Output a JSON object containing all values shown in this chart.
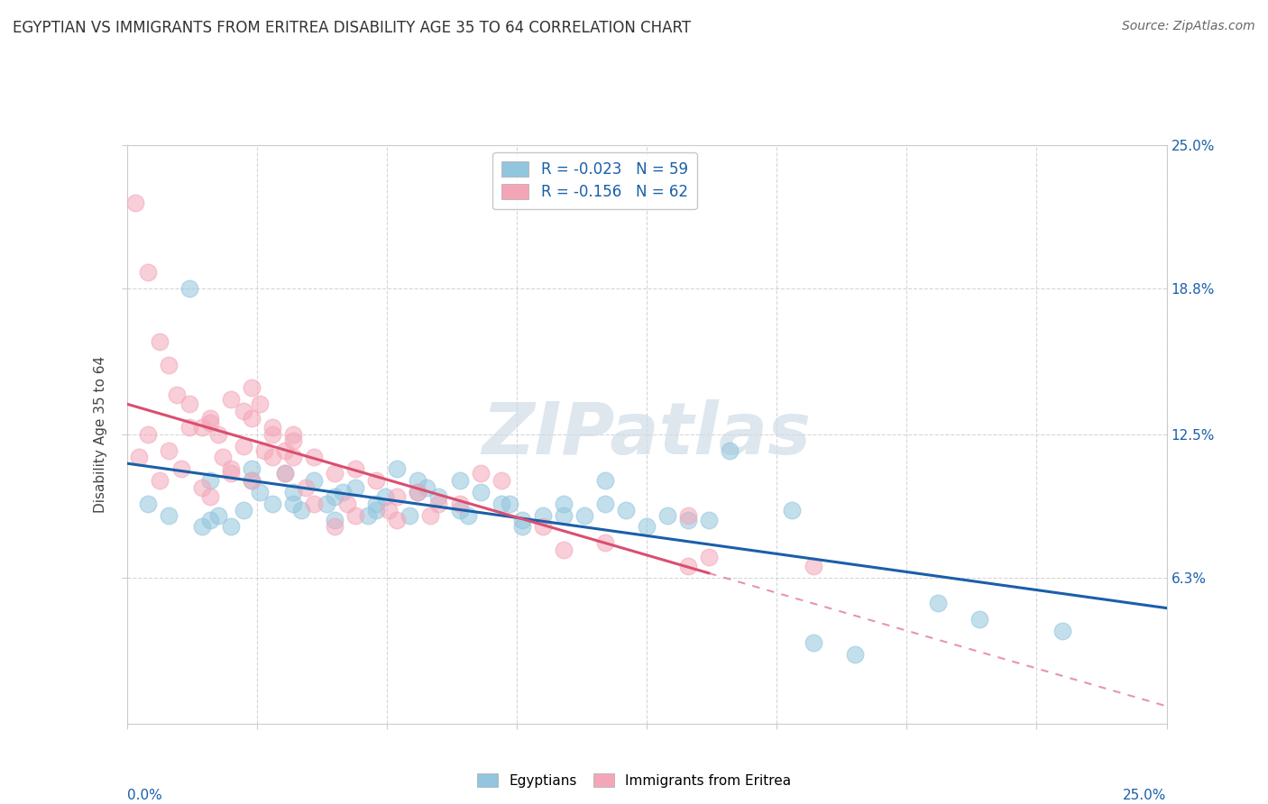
{
  "title": "EGYPTIAN VS IMMIGRANTS FROM ERITREA DISABILITY AGE 35 TO 64 CORRELATION CHART",
  "source": "Source: ZipAtlas.com",
  "ylabel": "Disability Age 35 to 64",
  "xlim": [
    0.0,
    25.0
  ],
  "ylim": [
    0.0,
    25.0
  ],
  "ytick_values": [
    6.3,
    12.5,
    18.8,
    25.0
  ],
  "watermark_text": "ZIPatlas",
  "legend_r1": "R = -0.023",
  "legend_n1": "N = 59",
  "legend_r2": "R = -0.156",
  "legend_n2": "N = 62",
  "color_blue": "#92c5de",
  "color_pink": "#f4a6b8",
  "line_blue": "#1a5fa8",
  "line_pink": "#d94f70",
  "egyptians_x": [
    0.5,
    1.5,
    2.0,
    2.2,
    2.5,
    3.0,
    3.2,
    3.5,
    4.0,
    4.2,
    4.5,
    5.0,
    5.5,
    5.8,
    6.0,
    6.5,
    6.8,
    7.0,
    7.5,
    8.0,
    8.5,
    9.0,
    9.5,
    10.0,
    10.5,
    11.0,
    11.5,
    12.0,
    12.5,
    13.0,
    13.5,
    14.5,
    16.5,
    17.5,
    20.5,
    22.5,
    1.8,
    2.8,
    3.8,
    4.8,
    5.2,
    6.2,
    7.2,
    8.2,
    9.2,
    1.0,
    2.0,
    3.0,
    4.0,
    5.0,
    6.0,
    7.0,
    8.0,
    9.5,
    10.5,
    11.5,
    14.0,
    16.0,
    19.5
  ],
  "egyptians_y": [
    9.5,
    18.8,
    10.5,
    9.0,
    8.5,
    11.0,
    10.0,
    9.5,
    10.0,
    9.2,
    10.5,
    9.8,
    10.2,
    9.0,
    9.5,
    11.0,
    9.0,
    10.5,
    9.8,
    9.2,
    10.0,
    9.5,
    8.8,
    9.0,
    9.5,
    9.0,
    10.5,
    9.2,
    8.5,
    9.0,
    8.8,
    11.8,
    3.5,
    3.0,
    4.5,
    4.0,
    8.5,
    9.2,
    10.8,
    9.5,
    10.0,
    9.8,
    10.2,
    9.0,
    9.5,
    9.0,
    8.8,
    10.5,
    9.5,
    8.8,
    9.2,
    10.0,
    10.5,
    8.5,
    9.0,
    9.5,
    8.8,
    9.2,
    5.2
  ],
  "eritrea_x": [
    0.2,
    0.5,
    0.8,
    1.0,
    1.2,
    1.5,
    1.8,
    2.0,
    2.2,
    2.5,
    2.8,
    3.0,
    3.2,
    3.5,
    3.8,
    4.0,
    4.5,
    5.0,
    5.5,
    6.0,
    6.5,
    7.0,
    8.0,
    9.0,
    10.5,
    13.5,
    0.3,
    0.8,
    1.3,
    1.8,
    2.3,
    2.8,
    3.3,
    3.8,
    4.3,
    5.3,
    6.3,
    7.3,
    8.5,
    10.0,
    11.5,
    14.0,
    16.5,
    0.5,
    1.0,
    1.5,
    2.0,
    2.5,
    3.0,
    3.5,
    4.0,
    4.5,
    5.5,
    6.5,
    2.0,
    2.5,
    3.0,
    3.5,
    4.0,
    5.0,
    7.5,
    13.5
  ],
  "eritrea_y": [
    22.5,
    19.5,
    16.5,
    15.5,
    14.2,
    13.8,
    12.8,
    13.2,
    12.5,
    14.0,
    13.5,
    14.5,
    13.8,
    12.5,
    11.8,
    12.5,
    11.5,
    10.8,
    11.0,
    10.5,
    9.8,
    10.0,
    9.5,
    10.5,
    7.5,
    9.0,
    11.5,
    10.5,
    11.0,
    10.2,
    11.5,
    12.0,
    11.8,
    10.8,
    10.2,
    9.5,
    9.2,
    9.0,
    10.8,
    8.5,
    7.8,
    7.2,
    6.8,
    12.5,
    11.8,
    12.8,
    13.0,
    11.0,
    10.5,
    11.5,
    12.2,
    9.5,
    9.0,
    8.8,
    9.8,
    10.8,
    13.2,
    12.8,
    11.5,
    8.5,
    9.5,
    6.8
  ],
  "dashed_start_x": 14.0,
  "pink_line_end_solid_x": 14.0
}
